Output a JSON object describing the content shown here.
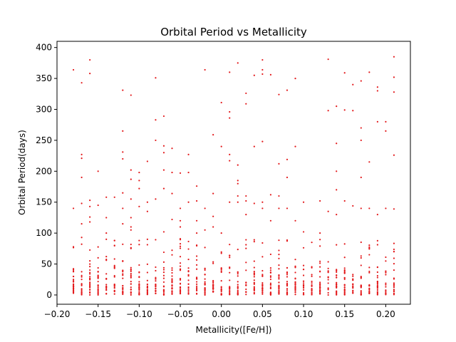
{
  "chart_data": {
    "type": "scatter",
    "title": "Orbital Period vs Metallicity",
    "xlabel": "Metallicity([Fe/H])",
    "ylabel": "Orbital Period(days)",
    "xlim": [
      -0.2,
      0.23
    ],
    "ylim": [
      -15,
      410
    ],
    "xticks": [
      -0.2,
      -0.15,
      -0.1,
      -0.05,
      0.0,
      0.05,
      0.1,
      0.15,
      0.2
    ],
    "xtick_labels": [
      "−0.20",
      "−0.15",
      "−0.10",
      "−0.05",
      "0.00",
      "0.05",
      "0.10",
      "0.15",
      "0.20"
    ],
    "yticks": [
      0,
      50,
      100,
      150,
      200,
      250,
      300,
      350,
      400
    ],
    "ytick_labels": [
      "0",
      "50",
      "100",
      "150",
      "200",
      "250",
      "300",
      "350",
      "400"
    ],
    "grid": false,
    "legend": false,
    "colors": {
      "points": "#e31a1c",
      "axes": "#000000",
      "background": "#ffffff"
    },
    "metallicity_bins": [
      -0.18,
      -0.17,
      -0.16,
      -0.15,
      -0.14,
      -0.13,
      -0.12,
      -0.11,
      -0.1,
      -0.09,
      -0.08,
      -0.07,
      -0.06,
      -0.05,
      -0.04,
      -0.03,
      -0.02,
      -0.01,
      0.0,
      0.01,
      0.02,
      0.03,
      0.04,
      0.05,
      0.06,
      0.07,
      0.08,
      0.09,
      0.1,
      0.11,
      0.12,
      0.13,
      0.14,
      0.15,
      0.16,
      0.17,
      0.18,
      0.19,
      0.2,
      0.21
    ],
    "x": [
      -0.18,
      -0.18,
      -0.18,
      -0.18,
      -0.17,
      -0.17,
      -0.17,
      -0.17,
      -0.17,
      -0.17,
      -0.17,
      -0.17,
      -0.16,
      -0.16,
      -0.16,
      -0.16,
      -0.16,
      -0.16,
      -0.15,
      -0.15,
      -0.15,
      -0.14,
      -0.14,
      -0.14,
      -0.14,
      -0.13,
      -0.13,
      -0.13,
      -0.12,
      -0.12,
      -0.12,
      -0.12,
      -0.12,
      -0.12,
      -0.12,
      -0.11,
      -0.11,
      -0.11,
      -0.11,
      -0.11,
      -0.11,
      -0.11,
      -0.1,
      -0.1,
      -0.1,
      -0.1,
      -0.1,
      -0.09,
      -0.09,
      -0.09,
      -0.09,
      -0.08,
      -0.08,
      -0.08,
      -0.08,
      -0.07,
      -0.07,
      -0.07,
      -0.07,
      -0.07,
      -0.07,
      -0.06,
      -0.06,
      -0.06,
      -0.06,
      -0.05,
      -0.05,
      -0.05,
      -0.05,
      -0.04,
      -0.04,
      -0.04,
      -0.03,
      -0.03,
      -0.03,
      -0.03,
      -0.02,
      -0.02,
      -0.02,
      -0.01,
      -0.01,
      -0.01,
      -0.01,
      0.0,
      0.0,
      0.0,
      0.01,
      0.01,
      0.01,
      0.01,
      0.01,
      0.01,
      0.02,
      0.02,
      0.02,
      0.02,
      0.02,
      0.02,
      0.03,
      0.03,
      0.03,
      0.03,
      0.03,
      0.04,
      0.04,
      0.04,
      0.05,
      0.05,
      0.05,
      0.05,
      0.05,
      0.05,
      0.06,
      0.06,
      0.06,
      0.07,
      0.07,
      0.07,
      0.07,
      0.08,
      0.08,
      0.08,
      0.08,
      0.09,
      0.09,
      0.09,
      0.1,
      0.1,
      0.12,
      0.12,
      0.13,
      0.13,
      0.13,
      0.14,
      0.14,
      0.14,
      0.14,
      0.14,
      0.15,
      0.15,
      0.15,
      0.16,
      0.16,
      0.16,
      0.17,
      0.17,
      0.17,
      0.17,
      0.17,
      0.18,
      0.18,
      0.18,
      0.19,
      0.19,
      0.19,
      0.19,
      0.2,
      0.2,
      0.2,
      0.21,
      0.21,
      0.21,
      0.21,
      0.21
    ],
    "y": [
      364,
      140,
      30,
      25,
      343,
      227,
      221,
      190,
      148,
      115,
      93,
      82,
      380,
      358,
      153,
      143,
      126,
      118,
      200,
      145,
      60,
      158,
      125,
      100,
      90,
      158,
      88,
      80,
      331,
      265,
      231,
      220,
      165,
      140,
      115,
      323,
      202,
      187,
      155,
      125,
      110,
      105,
      198,
      185,
      172,
      143,
      88,
      216,
      150,
      135,
      90,
      351,
      283,
      250,
      155,
      289,
      241,
      230,
      202,
      172,
      102,
      237,
      198,
      164,
      122,
      197,
      140,
      120,
      110,
      227,
      198,
      150,
      176,
      152,
      120,
      100,
      364,
      140,
      105,
      259,
      164,
      127,
      110,
      311,
      240,
      100,
      360,
      296,
      286,
      227,
      217,
      150,
      375,
      210,
      185,
      180,
      160,
      150,
      326,
      309,
      160,
      152,
      130,
      355,
      240,
      148,
      380,
      364,
      357,
      248,
      150,
      140,
      356,
      162,
      120,
      324,
      212,
      160,
      140,
      331,
      219,
      190,
      140,
      350,
      240,
      120,
      150,
      102,
      152,
      100,
      381,
      298,
      135,
      305,
      245,
      200,
      170,
      130,
      359,
      299,
      152,
      340,
      298,
      144,
      346,
      270,
      250,
      190,
      140,
      360,
      215,
      140,
      336,
      330,
      280,
      130,
      280,
      265,
      140,
      385,
      352,
      328,
      226,
      139
    ]
  }
}
